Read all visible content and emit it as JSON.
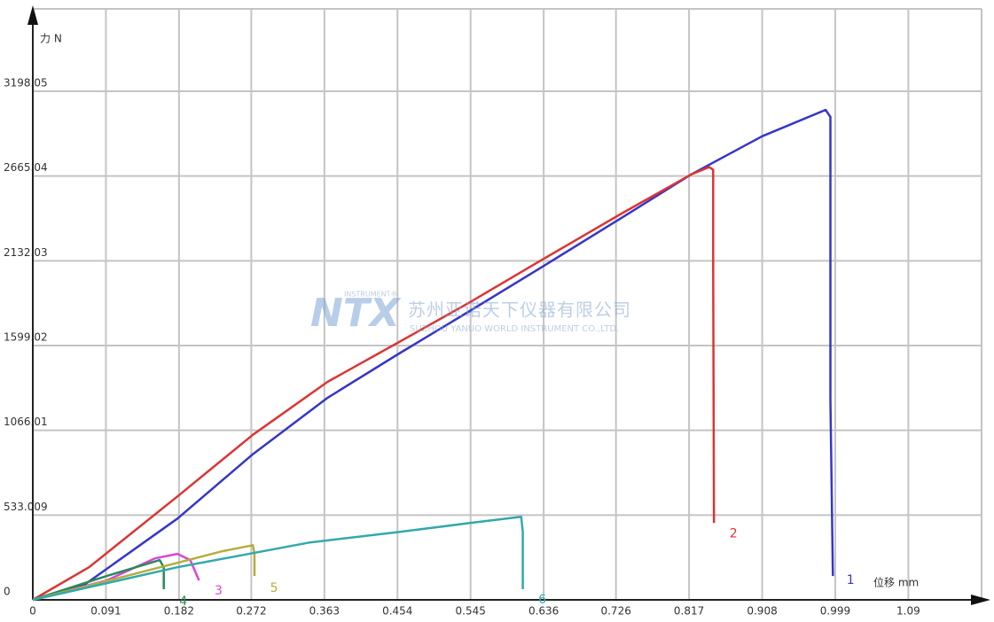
{
  "chart_data": {
    "type": "line",
    "x_label": "位移 mm",
    "y_label": "力 N",
    "xlim": [
      0,
      1.19
    ],
    "ylim": [
      0,
      3716
    ],
    "xticks": [
      0,
      0.091,
      0.182,
      0.272,
      0.363,
      0.454,
      0.545,
      0.636,
      0.726,
      0.817,
      0.908,
      0.999,
      1.09
    ],
    "yticks": [
      0,
      533.009,
      1066.01,
      1599.02,
      2132.03,
      2665.04,
      3198.05
    ],
    "grid": true,
    "watermark": {
      "logo": "NTX",
      "sub": "INSTRUMENT®",
      "name_cn": "苏州亚诺天下仪器有限公司",
      "name_en": "SUZHOU YANUO WORLD INSTRUMENT CO.,LTD."
    },
    "series": [
      {
        "name": "1",
        "color": "#3636c8",
        "x": [
          0,
          0.064,
          0.18,
          0.274,
          0.367,
          0.456,
          0.544,
          0.634,
          0.732,
          0.82,
          0.908,
          0.987,
          0.993,
          0.993,
          0.993,
          0.996
        ],
        "values": [
          0,
          94,
          511,
          916,
          1271,
          1549,
          1816,
          2093,
          2399,
          2676,
          2915,
          3081,
          3037,
          2482,
          1260,
          150
        ]
      },
      {
        "name": "2",
        "color": "#dc3434",
        "x": [
          0,
          0.07,
          0.18,
          0.274,
          0.367,
          0.456,
          0.544,
          0.634,
          0.732,
          0.82,
          0.842,
          0.847,
          0.847,
          0.848
        ],
        "values": [
          0,
          205,
          650,
          1038,
          1371,
          1621,
          1871,
          2138,
          2426,
          2676,
          2721,
          2704,
          2093,
          483
        ]
      },
      {
        "name": "3",
        "color": "#d845d8",
        "x": [
          0,
          0.092,
          0.152,
          0.18,
          0.196,
          0.207
        ],
        "values": [
          0,
          122,
          261,
          289,
          250,
          122
        ]
      },
      {
        "name": "4",
        "color": "#2a8a5a",
        "x": [
          0,
          0.092,
          0.158,
          0.163,
          0.163
        ],
        "values": [
          0,
          150,
          250,
          205,
          67
        ]
      },
      {
        "name": "5",
        "color": "#b5ad3e",
        "x": [
          0,
          0.125,
          0.235,
          0.274,
          0.276,
          0.276
        ],
        "values": [
          0,
          161,
          305,
          344,
          289,
          150
        ]
      },
      {
        "name": "6",
        "color": "#33a8ad",
        "x": [
          0,
          0.18,
          0.345,
          0.456,
          0.544,
          0.608,
          0.61,
          0.61
        ],
        "values": [
          0,
          205,
          361,
          427,
          483,
          522,
          427,
          67
        ]
      }
    ]
  }
}
